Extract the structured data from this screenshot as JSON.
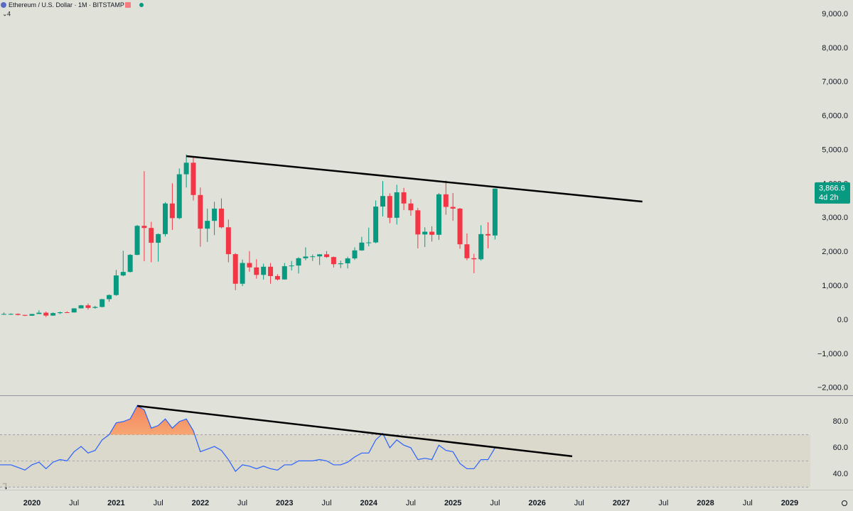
{
  "chart_data": [
    {
      "type": "candlestick",
      "title": "Ethereum / U.S. Dollar · 1M · BITSTAMP",
      "indicator_count": "4",
      "up_color": "#089981",
      "down_color": "#f23645",
      "x": [
        "2019-09",
        "2019-10",
        "2019-11",
        "2019-12",
        "2020-01",
        "2020-02",
        "2020-03",
        "2020-04",
        "2020-05",
        "2020-06",
        "2020-07",
        "2020-08",
        "2020-09",
        "2020-10",
        "2020-11",
        "2020-12",
        "2021-01",
        "2021-02",
        "2021-03",
        "2021-04",
        "2021-05",
        "2021-06",
        "2021-07",
        "2021-08",
        "2021-09",
        "2021-10",
        "2021-11",
        "2021-12",
        "2022-01",
        "2022-02",
        "2022-03",
        "2022-04",
        "2022-05",
        "2022-06",
        "2022-07",
        "2022-08",
        "2022-09",
        "2022-10",
        "2022-11",
        "2022-12",
        "2023-01",
        "2023-02",
        "2023-03",
        "2023-04",
        "2023-05",
        "2023-06",
        "2023-07",
        "2023-08",
        "2023-09",
        "2023-10",
        "2023-11",
        "2023-12",
        "2024-01",
        "2024-02",
        "2024-03",
        "2024-04",
        "2024-05",
        "2024-06",
        "2024-07",
        "2024-08",
        "2024-09",
        "2024-10",
        "2024-11",
        "2024-12",
        "2025-01",
        "2025-02",
        "2025-03",
        "2025-04",
        "2025-05",
        "2025-06",
        "2025-07"
      ],
      "open": [
        172,
        180,
        182,
        152,
        129,
        179,
        217,
        133,
        206,
        230,
        225,
        345,
        434,
        359,
        386,
        616,
        737,
        1313,
        1417,
        1919,
        2773,
        2710,
        2275,
        2530,
        3430,
        3000,
        4290,
        4630,
        3680,
        2690,
        2920,
        3280,
        2730,
        1940,
        1070,
        1680,
        1550,
        1330,
        1570,
        1295,
        1195,
        1585,
        1605,
        1820,
        1870,
        1875,
        1935,
        1855,
        1645,
        1670,
        1815,
        2050,
        2280,
        2285,
        3340,
        3650,
        3010,
        3760,
        3430,
        3230,
        2520,
        2600,
        2510,
        3700,
        3330,
        3280,
        2230,
        1820,
        1790,
        2530,
        2490
      ],
      "high": [
        224,
        198,
        196,
        153,
        185,
        288,
        253,
        227,
        247,
        255,
        349,
        445,
        489,
        418,
        622,
        755,
        1475,
        2040,
        1945,
        2800,
        4380,
        2890,
        2550,
        3470,
        4025,
        4460,
        4870,
        4780,
        3900,
        3280,
        3480,
        3580,
        2960,
        1970,
        1780,
        2030,
        1790,
        1660,
        1680,
        1350,
        1680,
        1740,
        1850,
        2140,
        1930,
        1940,
        2030,
        1870,
        1750,
        1865,
        2140,
        2450,
        2720,
        3520,
        4090,
        3730,
        3980,
        3890,
        3560,
        3300,
        2730,
        2760,
        3740,
        4110,
        3740,
        3300,
        2550,
        1950,
        2790,
        2880,
        3870
      ],
      "low": [
        153,
        152,
        138,
        117,
        127,
        178,
        90,
        127,
        178,
        216,
        224,
        343,
        309,
        333,
        372,
        540,
        714,
        1290,
        1400,
        1910,
        1730,
        1700,
        1720,
        2460,
        2650,
        2970,
        3900,
        3520,
        2160,
        2300,
        2500,
        2700,
        1700,
        880,
        1000,
        1420,
        1220,
        1190,
        1070,
        1165,
        1190,
        1460,
        1370,
        1760,
        1740,
        1620,
        1830,
        1550,
        1530,
        1520,
        1770,
        2040,
        2170,
        2260,
        3050,
        2850,
        2810,
        3240,
        3070,
        2110,
        2150,
        2310,
        2360,
        3100,
        2920,
        2100,
        1760,
        1380,
        1750,
        2110,
        2370
      ],
      "close": [
        180,
        182,
        152,
        129,
        179,
        217,
        133,
        206,
        230,
        225,
        345,
        434,
        359,
        386,
        616,
        737,
        1313,
        1417,
        1919,
        2773,
        2710,
        2275,
        2530,
        3430,
        3000,
        4290,
        4630,
        3680,
        2690,
        2920,
        3280,
        2730,
        1940,
        1070,
        1680,
        1550,
        1330,
        1570,
        1295,
        1195,
        1585,
        1605,
        1820,
        1870,
        1875,
        1935,
        1855,
        1645,
        1670,
        1815,
        2050,
        2280,
        2285,
        3340,
        3650,
        3010,
        3760,
        3430,
        3230,
        2520,
        2600,
        2510,
        3700,
        3330,
        3280,
        2230,
        1820,
        1790,
        2530,
        2490,
        3866.6
      ],
      "ylim": [
        -2213,
        9417
      ],
      "yticks": [
        {
          "value": 9000,
          "label": "9,000.0"
        },
        {
          "value": 8000,
          "label": "8,000.0"
        },
        {
          "value": 7000,
          "label": "7,000.0"
        },
        {
          "value": 6000,
          "label": "6,000.0"
        },
        {
          "value": 5000,
          "label": "5,000.0"
        },
        {
          "value": 4000,
          "label": "4,000.0"
        },
        {
          "value": 3000,
          "label": "3,000.0"
        },
        {
          "value": 2000,
          "label": "2,000.0"
        },
        {
          "value": 1000,
          "label": "1,000.0"
        },
        {
          "value": 0,
          "label": "0.0"
        },
        {
          "value": -1000,
          "label": "−1,000.0"
        },
        {
          "value": -2000,
          "label": "−2,000.0"
        }
      ],
      "last_price": {
        "value": 3866.6,
        "label": "3,866.6"
      },
      "countdown": "4d 2h",
      "trendline": {
        "from": {
          "x": "2021-11",
          "y": 4823
        },
        "to": {
          "x": "2027-04",
          "y": 3486
        }
      },
      "xticks": [
        {
          "value": "2020-01",
          "label": "2020"
        },
        {
          "value": "2020-07",
          "label": "Jul"
        },
        {
          "value": "2021-01",
          "label": "2021"
        },
        {
          "value": "2021-07",
          "label": "Jul"
        },
        {
          "value": "2022-01",
          "label": "2022"
        },
        {
          "value": "2022-07",
          "label": "Jul"
        },
        {
          "value": "2023-01",
          "label": "2023"
        },
        {
          "value": "2023-07",
          "label": "Jul"
        },
        {
          "value": "2024-01",
          "label": "2024"
        },
        {
          "value": "2024-07",
          "label": "Jul"
        },
        {
          "value": "2025-01",
          "label": "2025"
        },
        {
          "value": "2025-07",
          "label": "Jul"
        },
        {
          "value": "2026-01",
          "label": "2026"
        },
        {
          "value": "2026-07",
          "label": "Jul"
        },
        {
          "value": "2027-01",
          "label": "2027"
        },
        {
          "value": "2027-07",
          "label": "Jul"
        },
        {
          "value": "2028-01",
          "label": "2028"
        },
        {
          "value": "2028-07",
          "label": "Jul"
        },
        {
          "value": "2029-01",
          "label": "2029"
        }
      ]
    },
    {
      "type": "line",
      "color": "#2962ff",
      "values": [
        47,
        47,
        45,
        43,
        47,
        49,
        44,
        49,
        51,
        50,
        57,
        61,
        56,
        58,
        66,
        70,
        79,
        80,
        82,
        92,
        89,
        75,
        77,
        82,
        75,
        80,
        82,
        73,
        57,
        59,
        61,
        58,
        51,
        42,
        47,
        46,
        44,
        46,
        44,
        43,
        47,
        47,
        50,
        50,
        50,
        51,
        50,
        47,
        47,
        49,
        53,
        56,
        56,
        66,
        71,
        60,
        66,
        62,
        60,
        51,
        52,
        51,
        62,
        58,
        57,
        48,
        44,
        44,
        51,
        51,
        60
      ],
      "ylim": [
        28,
        99.5
      ],
      "yticks": [
        {
          "value": 80,
          "label": "80.0"
        },
        {
          "value": 60,
          "label": "60.0"
        },
        {
          "value": 40,
          "label": "40.0"
        }
      ],
      "bands": {
        "upper": 70,
        "middle": 50,
        "lower": 30
      },
      "trendline": {
        "from": {
          "x": "2021-04",
          "y": 92
        },
        "to": {
          "x": "2026-06",
          "y": 53.5
        }
      }
    }
  ]
}
